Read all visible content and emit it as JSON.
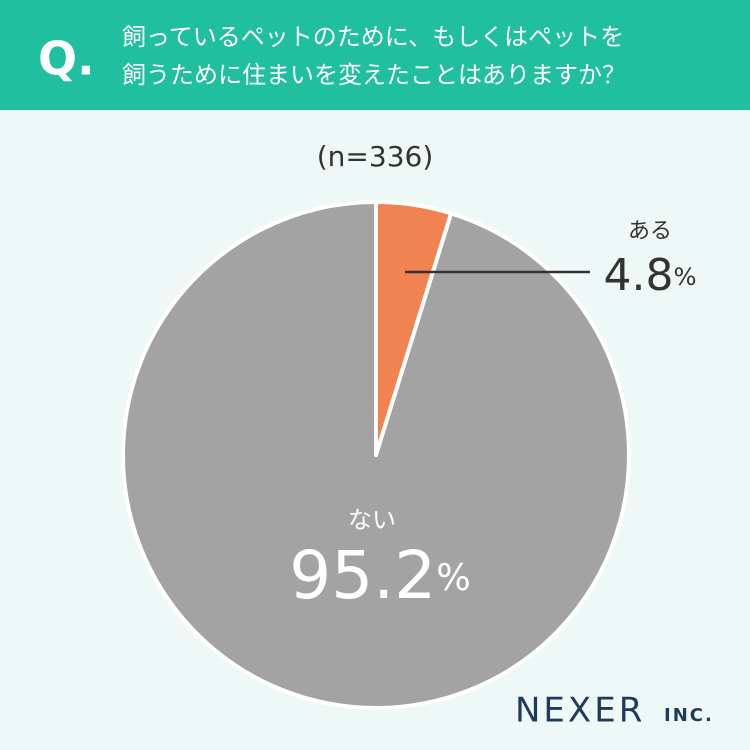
{
  "chart_data": {
    "type": "pie",
    "question_mark": "Q.",
    "title": [
      "飼っているペットのために、もしくはペットを",
      "飼うために住まいを変えたことはありますか？"
    ],
    "subtitle": "(n=336)",
    "categories": [
      "ある",
      "ない"
    ],
    "values": [
      4.8,
      95.2
    ],
    "value_labels": [
      "4.8%",
      "95.2%"
    ],
    "colors": [
      "#f0834f",
      "#a3a3a3"
    ],
    "logo": "NEXER",
    "logo_suffix": "INC."
  }
}
